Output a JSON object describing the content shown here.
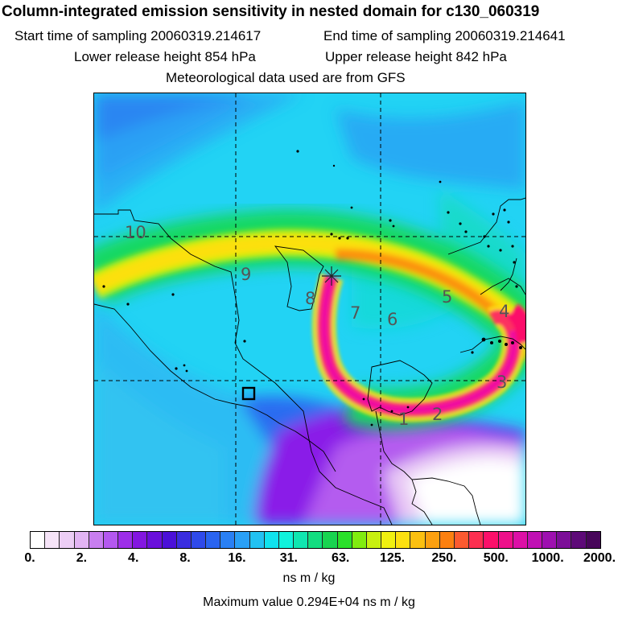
{
  "title": "Column-integrated emission sensitivity in nested domain for c130_060319",
  "start_label": "Start time of sampling 20060319.214617",
  "end_label": "End time of sampling 20060319.214641",
  "lower_label": "Lower release height  854 hPa",
  "upper_label": "Upper release height  842 hPa",
  "met_label": "Meteorological data used are from GFS",
  "map_labels": [
    "10",
    "9",
    "8",
    "7",
    "6",
    "5",
    "4",
    "3",
    "2",
    "1"
  ],
  "colorbar": {
    "ticks": [
      "0.",
      "2.",
      "4.",
      "8.",
      "16.",
      "31.",
      "63.",
      "125.",
      "250.",
      "500.",
      "1000.",
      "2000."
    ],
    "colors": [
      "#ffffff",
      "#f6e4f8",
      "#eccdf5",
      "#e2b4f3",
      "#c87ef0",
      "#b458ef",
      "#9d2ee8",
      "#8316e0",
      "#6a0fdc",
      "#4b10d8",
      "#3a2de0",
      "#2f4aea",
      "#2a64f0",
      "#2a80f4",
      "#2aa0f6",
      "#22c2f2",
      "#10e3ee",
      "#10f2dc",
      "#10e6b0",
      "#12dd80",
      "#18d450",
      "#2ae02a",
      "#80ec10",
      "#c8f010",
      "#f0f010",
      "#fce010",
      "#fcc010",
      "#fca010",
      "#fc8010",
      "#fc5a30",
      "#fc2f50",
      "#fc106a",
      "#ee108a",
      "#dc10a6",
      "#c010b4",
      "#9e10b0",
      "#7c0e98",
      "#5e0a78",
      "#48065a"
    ],
    "unit": "ns m / kg"
  },
  "max_value": "Maximum value  0.294E+04 ns m / kg"
}
